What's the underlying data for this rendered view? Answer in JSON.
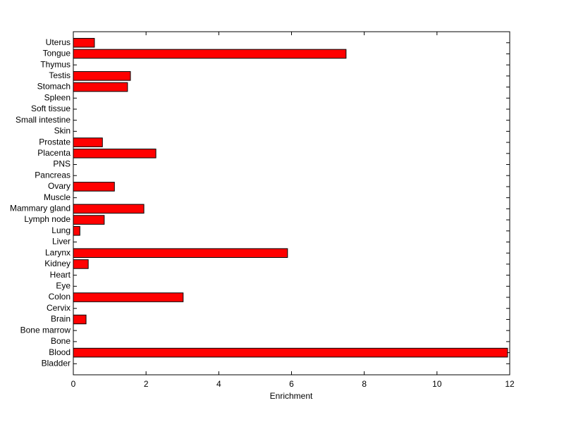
{
  "chart_data": {
    "type": "barh",
    "xlabel": "Enrichment",
    "categories": [
      "Bladder",
      "Blood",
      "Bone",
      "Bone marrow",
      "Brain",
      "Cervix",
      "Colon",
      "Eye",
      "Heart",
      "Kidney",
      "Larynx",
      "Liver",
      "Lung",
      "Lymph node",
      "Mammary gland",
      "Muscle",
      "Ovary",
      "Pancreas",
      "PNS",
      "Placenta",
      "Prostate",
      "Skin",
      "Small intestine",
      "Soft tissue",
      "Spleen",
      "Stomach",
      "Testis",
      "Thymus",
      "Tongue",
      "Uterus"
    ],
    "values": [
      0,
      11.94,
      0,
      0,
      0.35,
      0,
      3.02,
      0,
      0,
      0.41,
      5.89,
      0,
      0.18,
      0.85,
      1.94,
      0,
      1.13,
      0,
      0,
      2.27,
      0.8,
      0,
      0,
      0,
      0,
      1.49,
      1.57,
      0,
      7.5,
      0.58
    ],
    "color": "#ff0000",
    "xlim": [
      0,
      12
    ],
    "xticks": [
      0,
      2,
      4,
      6,
      8,
      10,
      12
    ]
  }
}
